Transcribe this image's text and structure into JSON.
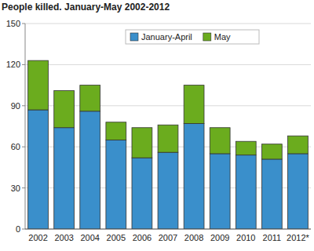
{
  "chart_data": {
    "type": "bar",
    "title": "People killed. January-May 2002-2012",
    "categories": [
      "2002",
      "2003",
      "2004",
      "2005",
      "2006",
      "2007",
      "2008",
      "2009",
      "2010",
      "2011",
      "2012*"
    ],
    "series": [
      {
        "name": "January-April",
        "color": "#3a8fcb",
        "values": [
          87,
          74,
          86,
          65,
          52,
          56,
          77,
          55,
          54,
          51,
          55
        ]
      },
      {
        "name": "May",
        "color": "#6bac1e",
        "values": [
          36,
          27,
          19,
          13,
          22,
          20,
          28,
          19,
          10,
          11,
          13
        ]
      }
    ],
    "stacked": true,
    "ylim": [
      0,
      150
    ],
    "yticks": [
      0,
      30,
      60,
      90,
      120,
      150
    ],
    "grid": true,
    "legend": "top"
  }
}
